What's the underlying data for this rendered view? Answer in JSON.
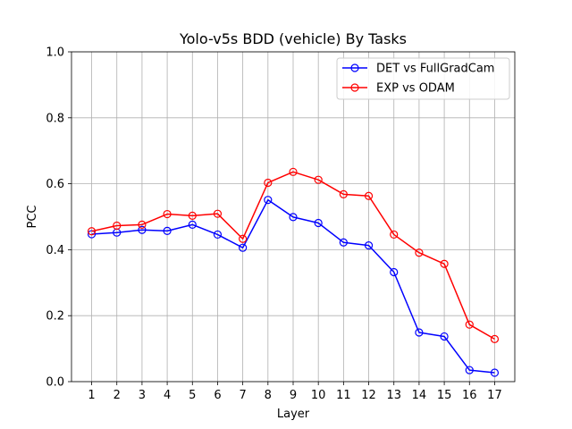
{
  "chart_data": {
    "type": "line",
    "title": "Yolo-v5s BDD (vehicle) By Tasks",
    "xlabel": "Layer",
    "ylabel": "PCC",
    "x": [
      1,
      2,
      3,
      4,
      5,
      6,
      7,
      8,
      9,
      10,
      11,
      12,
      13,
      14,
      15,
      16,
      17
    ],
    "xlim": [
      0.2,
      17.8
    ],
    "ylim": [
      0.0,
      1.0
    ],
    "yticks": [
      0.0,
      0.2,
      0.4,
      0.6,
      0.8,
      1.0
    ],
    "ytick_labels": [
      "0.0",
      "0.2",
      "0.4",
      "0.6",
      "0.8",
      "1.0"
    ],
    "grid": true,
    "legend_position": "top-right",
    "series": [
      {
        "name": "DET vs FullGradCam",
        "color": "#0000ff",
        "marker": "open-circle",
        "values": [
          0.447,
          0.452,
          0.46,
          0.457,
          0.476,
          0.446,
          0.406,
          0.551,
          0.499,
          0.481,
          0.422,
          0.413,
          0.332,
          0.149,
          0.137,
          0.035,
          0.027
        ]
      },
      {
        "name": "EXP vs ODAM",
        "color": "#ff0000",
        "marker": "open-circle",
        "values": [
          0.456,
          0.473,
          0.476,
          0.508,
          0.503,
          0.509,
          0.433,
          0.603,
          0.636,
          0.612,
          0.568,
          0.563,
          0.446,
          0.391,
          0.357,
          0.173,
          0.129
        ]
      }
    ]
  }
}
